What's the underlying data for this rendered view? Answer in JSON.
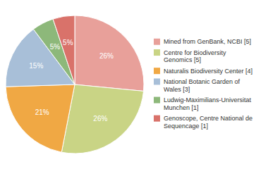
{
  "chart_data": {
    "type": "pie",
    "categories": [
      "Mined from GenBank, NCBI [5]",
      "Centre for Biodiversity\nGenomics [5]",
      "Naturalis Biodiversity Center [4]",
      "National Botanic Garden of\nWales [3]",
      "Ludwig-Maximilians-Universitat\nMunchen [1]",
      "Genoscope, Centre National de\nSequencage [1]"
    ],
    "values": [
      26,
      26,
      21,
      15,
      5,
      5
    ],
    "value_labels": [
      "26%",
      "26%",
      "21%",
      "15%",
      "5%",
      "5%"
    ],
    "colors": [
      "#e8a09a",
      "#c9d485",
      "#f0a844",
      "#a8bfd8",
      "#8db87a",
      "#d9726a"
    ],
    "data_labels": true,
    "legend": "right"
  }
}
